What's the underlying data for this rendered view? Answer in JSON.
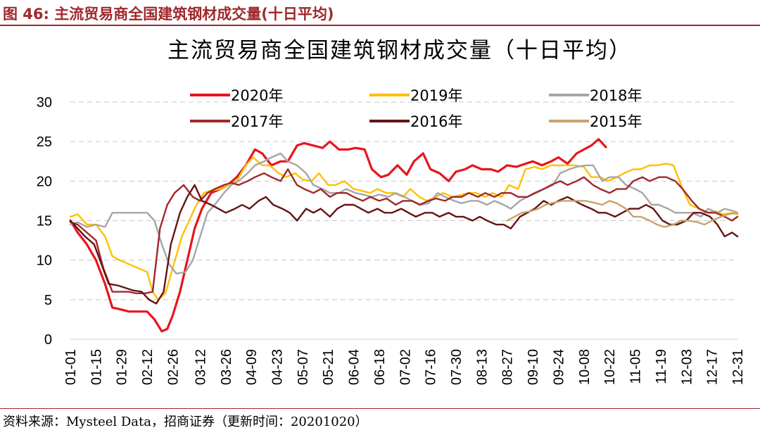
{
  "figure": {
    "label": "图 46:  主流贸易商全国建筑钢材成交量(十日平均)",
    "source": "资料来源：Mysteel Data，招商证券（更新时间：20201020）"
  },
  "chart_data": {
    "type": "line",
    "title": "主流贸易商全国建筑钢材成交量（十日平均）",
    "xlabel": "",
    "ylabel": "",
    "ylim": [
      0,
      30
    ],
    "yticks": [
      0,
      5,
      10,
      15,
      20,
      25,
      30
    ],
    "x_tick_labels": [
      "01-01",
      "01-15",
      "01-29",
      "02-12",
      "02-26",
      "03-12",
      "03-26",
      "04-09",
      "04-23",
      "05-07",
      "05-21",
      "06-04",
      "06-18",
      "07-02",
      "07-16",
      "07-30",
      "08-13",
      "08-27",
      "09-10",
      "09-24",
      "10-08",
      "10-22",
      "11-05",
      "11-19",
      "12-03",
      "12-17",
      "12-31"
    ],
    "grid": "horizontal-dashed",
    "legend_position": "top",
    "series": [
      {
        "name": "2020年",
        "color": "#e8141c",
        "width": 3.2,
        "x": [
          "01-01",
          "01-05",
          "01-10",
          "01-15",
          "01-20",
          "01-24",
          "01-28",
          "02-02",
          "02-07",
          "02-12",
          "02-16",
          "02-20",
          "02-23",
          "02-26",
          "03-01",
          "03-05",
          "03-09",
          "03-13",
          "03-18",
          "03-23",
          "03-27",
          "04-01",
          "04-06",
          "04-11",
          "04-15",
          "04-20",
          "04-25",
          "04-29",
          "05-04",
          "05-08",
          "05-13",
          "05-18",
          "05-22",
          "05-27",
          "06-01",
          "06-05",
          "06-10",
          "06-14",
          "06-19",
          "06-23",
          "06-28",
          "07-03",
          "07-07",
          "07-12",
          "07-16",
          "07-21",
          "07-26",
          "07-30",
          "08-04",
          "08-08",
          "08-13",
          "08-18",
          "08-22",
          "08-27",
          "09-01",
          "09-06",
          "09-10",
          "09-15",
          "09-20",
          "09-24",
          "09-29",
          "10-04",
          "10-08",
          "10-12",
          "10-16",
          "10-20"
        ],
        "y": [
          15.0,
          13.5,
          12.0,
          10.0,
          7.0,
          4.0,
          3.8,
          3.5,
          3.5,
          3.5,
          2.5,
          1.0,
          1.3,
          3.0,
          6.0,
          10.0,
          14.0,
          16.5,
          18.5,
          19.0,
          19.5,
          20.5,
          22.0,
          24.0,
          23.5,
          22.0,
          22.5,
          22.5,
          24.5,
          24.8,
          24.5,
          24.2,
          25.0,
          24.0,
          24.0,
          24.2,
          24.0,
          21.5,
          20.5,
          20.8,
          22.0,
          20.8,
          22.5,
          23.5,
          21.5,
          21.0,
          20.0,
          21.2,
          21.5,
          22.0,
          21.5,
          21.5,
          21.2,
          22.0,
          21.8,
          22.2,
          22.5,
          22.0,
          22.5,
          23.0,
          22.2,
          23.5,
          24.0,
          24.5,
          25.3,
          24.3
        ]
      },
      {
        "name": "2019年",
        "color": "#ffc000",
        "width": 2.4,
        "x": [
          "01-01",
          "01-05",
          "01-10",
          "01-15",
          "01-20",
          "01-24",
          "01-28",
          "02-02",
          "02-07",
          "02-12",
          "02-15",
          "02-18",
          "02-22",
          "02-26",
          "03-02",
          "03-06",
          "03-10",
          "03-14",
          "03-18",
          "03-23",
          "03-27",
          "04-01",
          "04-06",
          "04-10",
          "04-15",
          "04-19",
          "04-24",
          "04-28",
          "05-03",
          "05-07",
          "05-12",
          "05-16",
          "05-21",
          "05-25",
          "05-30",
          "06-04",
          "06-08",
          "06-13",
          "06-17",
          "06-22",
          "06-26",
          "07-01",
          "07-05",
          "07-10",
          "07-14",
          "07-19",
          "07-23",
          "07-28",
          "08-01",
          "08-06",
          "08-10",
          "08-15",
          "08-19",
          "08-24",
          "08-28",
          "09-02",
          "09-06",
          "09-11",
          "09-15",
          "09-20",
          "09-24",
          "09-29",
          "10-03",
          "10-08",
          "10-12",
          "10-17",
          "10-21",
          "10-26",
          "10-30",
          "11-04",
          "11-08",
          "11-13",
          "11-17",
          "11-22",
          "11-26",
          "12-01",
          "12-05",
          "12-10",
          "12-14",
          "12-19",
          "12-23",
          "12-28",
          "12-31"
        ],
        "y": [
          15.5,
          15.8,
          14.5,
          14.5,
          13.0,
          10.5,
          10.0,
          9.5,
          9.0,
          8.5,
          6.0,
          5.0,
          5.8,
          9.0,
          13.0,
          15.0,
          17.0,
          18.5,
          18.8,
          19.0,
          19.5,
          20.0,
          22.0,
          23.0,
          22.0,
          22.0,
          21.0,
          20.5,
          21.0,
          20.2,
          20.0,
          21.0,
          19.5,
          19.5,
          20.0,
          19.0,
          18.8,
          18.5,
          19.0,
          18.5,
          18.5,
          18.0,
          19.0,
          18.0,
          17.5,
          18.0,
          18.5,
          18.0,
          18.2,
          18.5,
          18.5,
          18.0,
          18.5,
          18.0,
          19.5,
          19.0,
          21.5,
          21.8,
          21.5,
          22.0,
          22.0,
          22.0,
          22.0,
          21.8,
          20.5,
          20.5,
          20.0,
          20.5,
          21.0,
          21.5,
          21.5,
          22.0,
          22.0,
          22.2,
          22.0,
          19.0,
          17.0,
          16.5,
          16.0,
          16.2,
          15.8,
          16.0,
          15.8
        ]
      },
      {
        "name": "2018年",
        "color": "#a6a6a6",
        "width": 2.4,
        "x": [
          "01-01",
          "01-05",
          "01-10",
          "01-15",
          "01-20",
          "01-24",
          "01-28",
          "02-02",
          "02-07",
          "02-12",
          "02-16",
          "02-20",
          "02-24",
          "02-28",
          "03-04",
          "03-08",
          "03-12",
          "03-16",
          "03-20",
          "03-25",
          "03-29",
          "04-02",
          "04-07",
          "04-11",
          "04-16",
          "04-20",
          "04-25",
          "04-29",
          "05-04",
          "05-09",
          "05-13",
          "05-18",
          "05-22",
          "05-27",
          "05-31",
          "06-05",
          "06-09",
          "06-14",
          "06-18",
          "06-23",
          "06-27",
          "07-02",
          "07-06",
          "07-11",
          "07-15",
          "07-20",
          "07-24",
          "07-29",
          "08-02",
          "08-07",
          "08-11",
          "08-16",
          "08-20",
          "08-25",
          "08-29",
          "09-03",
          "09-07",
          "09-12",
          "09-16",
          "09-21",
          "09-25",
          "09-30",
          "10-04",
          "10-09",
          "10-13",
          "10-18",
          "10-22",
          "10-27",
          "10-31",
          "11-05",
          "11-09",
          "11-14",
          "11-18",
          "11-23",
          "11-27",
          "12-02",
          "12-06",
          "12-11",
          "12-15",
          "12-20",
          "12-24",
          "12-29",
          "12-31"
        ],
        "y": [
          14.5,
          14.8,
          14.2,
          14.5,
          14.2,
          16.0,
          16.0,
          16.0,
          16.0,
          16.0,
          15.0,
          12.0,
          9.5,
          8.3,
          8.5,
          10.0,
          13.0,
          16.0,
          17.0,
          18.5,
          19.5,
          20.0,
          21.0,
          22.0,
          22.5,
          23.0,
          23.5,
          22.5,
          22.0,
          21.0,
          19.5,
          19.0,
          18.5,
          18.5,
          19.0,
          18.5,
          18.3,
          18.0,
          18.3,
          18.0,
          18.5,
          18.0,
          17.5,
          17.0,
          17.2,
          18.5,
          18.0,
          17.5,
          17.2,
          17.5,
          17.5,
          17.0,
          17.5,
          17.0,
          16.5,
          17.5,
          18.0,
          18.5,
          19.0,
          19.5,
          21.0,
          21.5,
          21.8,
          22.0,
          22.0,
          20.0,
          20.5,
          20.5,
          19.5,
          19.0,
          18.5,
          17.0,
          17.0,
          16.5,
          16.0,
          16.0,
          16.0,
          15.5,
          16.5,
          16.0,
          16.5,
          16.2,
          16.0
        ]
      },
      {
        "name": "2017年",
        "color": "#a0282d",
        "width": 2.4,
        "x": [
          "01-01",
          "01-05",
          "01-10",
          "01-15",
          "01-19",
          "01-24",
          "01-28",
          "02-02",
          "02-06",
          "02-11",
          "02-15",
          "02-19",
          "02-23",
          "02-27",
          "03-03",
          "03-08",
          "03-12",
          "03-16",
          "03-20",
          "03-25",
          "03-29",
          "04-02",
          "04-07",
          "04-11",
          "04-16",
          "04-20",
          "04-25",
          "04-29",
          "05-04",
          "05-08",
          "05-13",
          "05-17",
          "05-22",
          "05-26",
          "05-31",
          "06-04",
          "06-09",
          "06-13",
          "06-18",
          "06-22",
          "06-27",
          "07-01",
          "07-06",
          "07-10",
          "07-15",
          "07-19",
          "07-24",
          "07-28",
          "08-02",
          "08-06",
          "08-11",
          "08-15",
          "08-20",
          "08-24",
          "08-29",
          "09-02",
          "09-07",
          "09-11",
          "09-16",
          "09-20",
          "09-25",
          "09-29",
          "10-04",
          "10-08",
          "10-13",
          "10-17",
          "10-22",
          "10-26",
          "10-31",
          "11-04",
          "11-09",
          "11-13",
          "11-18",
          "11-22",
          "11-27",
          "12-01",
          "12-06",
          "12-10",
          "12-15",
          "12-19",
          "12-24",
          "12-28",
          "12-31"
        ],
        "y": [
          14.8,
          14.5,
          13.5,
          12.5,
          9.0,
          6.0,
          6.0,
          6.0,
          5.8,
          5.8,
          6.0,
          14.0,
          17.0,
          18.5,
          19.5,
          18.0,
          17.5,
          18.5,
          19.0,
          19.5,
          19.8,
          19.5,
          20.0,
          20.5,
          21.0,
          20.5,
          20.0,
          21.5,
          19.5,
          19.0,
          18.5,
          19.0,
          18.0,
          18.5,
          18.5,
          18.0,
          17.5,
          18.0,
          17.5,
          17.8,
          17.0,
          17.5,
          17.5,
          17.0,
          17.5,
          17.8,
          17.5,
          18.0,
          18.0,
          18.5,
          18.0,
          18.5,
          18.0,
          18.5,
          18.5,
          18.0,
          18.0,
          18.5,
          19.0,
          19.5,
          20.0,
          19.5,
          20.0,
          20.5,
          19.5,
          19.0,
          18.5,
          19.0,
          19.0,
          20.0,
          20.5,
          20.0,
          20.5,
          20.5,
          20.0,
          19.0,
          17.5,
          16.5,
          16.0,
          16.0,
          15.5,
          15.0,
          15.5
        ]
      },
      {
        "name": "2016年",
        "color": "#641414",
        "width": 2.4,
        "x": [
          "01-01",
          "01-05",
          "01-09",
          "01-14",
          "01-18",
          "01-22",
          "01-27",
          "01-31",
          "02-04",
          "02-09",
          "02-13",
          "02-17",
          "02-21",
          "02-25",
          "03-01",
          "03-05",
          "03-09",
          "03-13",
          "03-18",
          "03-22",
          "03-26",
          "03-31",
          "04-04",
          "04-08",
          "04-13",
          "04-17",
          "04-21",
          "04-26",
          "04-30",
          "05-04",
          "05-09",
          "05-13",
          "05-17",
          "05-22",
          "05-26",
          "05-30",
          "06-04",
          "06-08",
          "06-12",
          "06-17",
          "06-21",
          "06-25",
          "06-30",
          "07-04",
          "07-08",
          "07-13",
          "07-17",
          "07-21",
          "07-26",
          "07-30",
          "08-03",
          "08-08",
          "08-12",
          "08-16",
          "08-21",
          "08-25",
          "08-29",
          "09-03",
          "09-07",
          "09-11",
          "09-16",
          "09-20",
          "09-24",
          "09-29",
          "10-03",
          "10-07",
          "10-12",
          "10-16",
          "10-20",
          "10-25",
          "10-29",
          "11-02",
          "11-07",
          "11-11",
          "11-15",
          "11-20",
          "11-24",
          "11-28",
          "12-03",
          "12-07",
          "12-11",
          "12-16",
          "12-20",
          "12-24",
          "12-28",
          "12-31"
        ],
        "y": [
          15.0,
          14.0,
          13.0,
          12.0,
          9.5,
          7.0,
          6.8,
          6.5,
          6.2,
          6.0,
          5.0,
          4.5,
          6.0,
          12.0,
          16.0,
          18.0,
          19.5,
          17.5,
          17.0,
          16.5,
          16.0,
          16.5,
          17.0,
          16.5,
          17.5,
          18.0,
          17.0,
          16.5,
          16.0,
          15.0,
          16.5,
          16.0,
          16.5,
          15.5,
          16.5,
          17.0,
          17.0,
          16.5,
          16.0,
          16.5,
          16.0,
          16.0,
          16.5,
          16.0,
          15.5,
          16.0,
          16.0,
          15.5,
          16.0,
          15.5,
          15.5,
          15.0,
          15.5,
          15.0,
          14.5,
          14.5,
          14.0,
          15.5,
          16.0,
          16.5,
          17.5,
          17.0,
          17.5,
          18.0,
          17.5,
          17.0,
          16.5,
          16.0,
          16.0,
          15.5,
          16.0,
          16.5,
          16.5,
          17.0,
          16.5,
          15.0,
          14.5,
          14.5,
          15.0,
          16.0,
          16.0,
          15.5,
          14.5,
          13.0,
          13.5,
          13.0
        ]
      },
      {
        "name": "2015年",
        "color": "#c9a36b",
        "width": 2.4,
        "x": [
          "08-27",
          "08-31",
          "09-04",
          "09-09",
          "09-13",
          "09-17",
          "09-22",
          "09-26",
          "09-30",
          "10-05",
          "10-09",
          "10-13",
          "10-18",
          "10-22",
          "10-26",
          "10-31",
          "11-04",
          "11-08",
          "11-13",
          "11-17",
          "11-21",
          "11-26",
          "11-30",
          "12-04",
          "12-09",
          "12-13",
          "12-17",
          "12-22",
          "12-26",
          "12-31"
        ],
        "y": [
          15.0,
          15.5,
          16.0,
          16.2,
          16.5,
          17.0,
          17.3,
          17.5,
          17.5,
          17.5,
          17.5,
          17.3,
          17.0,
          17.5,
          17.2,
          16.5,
          15.5,
          15.5,
          15.0,
          14.5,
          14.2,
          14.5,
          15.0,
          15.0,
          14.8,
          14.5,
          15.0,
          15.5,
          15.8,
          16.0
        ]
      }
    ]
  }
}
